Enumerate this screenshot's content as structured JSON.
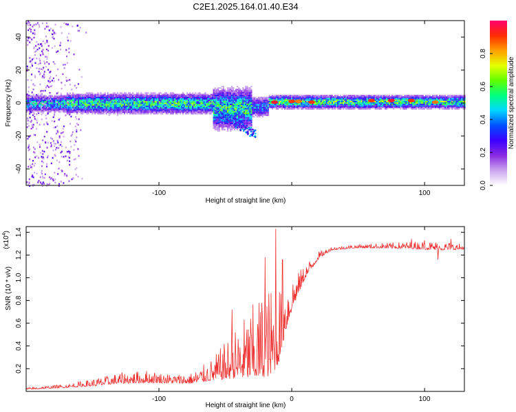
{
  "chart_data": [
    {
      "type": "heatmap",
      "title": "C2E1.2025.164.01.40.E34",
      "xlabel": "Height of straight line (km)",
      "ylabel": "Frequency (Hz)",
      "xlim": [
        -200,
        130
      ],
      "ylim": [
        -50,
        50
      ],
      "x_ticks": [
        -100,
        0,
        100
      ],
      "x_tick_labels": [
        "-100",
        "",
        "100"
      ],
      "y_ticks": [
        -40,
        -20,
        0,
        20,
        40
      ],
      "y_tick_labels": [
        "-40",
        "-20",
        "0",
        "20",
        "40"
      ],
      "colorbar": {
        "label": "Normalized spectral amplitude",
        "range": [
          0,
          1
        ],
        "ticks": [
          "0.0",
          "0.2",
          "0.4",
          "0.6",
          "0.8"
        ],
        "colormap": [
          "#ffffff",
          "#c9a4ee",
          "#8a2be2",
          "#3a00ff",
          "#0050ff",
          "#00d7ff",
          "#00ff80",
          "#60ff00",
          "#e6ff00",
          "#ffa000",
          "#ff2a00",
          "#ff0070"
        ]
      },
      "signal_band": [
        {
          "x_from": -200,
          "x_to": -170,
          "center": 0,
          "half_width": 5,
          "peak": 0.5,
          "note": "noisy broadband speckle up to ±50 Hz"
        },
        {
          "x_from": -170,
          "x_to": -60,
          "center": 0,
          "half_width": 6,
          "peak": 0.55
        },
        {
          "x_from": -60,
          "x_to": -30,
          "center": -3,
          "half_width": 12,
          "peak": 0.55
        },
        {
          "x_from": -30,
          "x_to": -18,
          "center": -2,
          "half_width": 6,
          "peak": 0.4
        },
        {
          "x_from": -18,
          "x_to": 130,
          "center": 1,
          "half_width": 4,
          "peak": 0.6
        }
      ],
      "hot_spots": [
        {
          "x": -13,
          "f": 0.5,
          "value": 0.95
        },
        {
          "x": 0,
          "f": 1,
          "value": 0.9
        },
        {
          "x": 5,
          "f": 1,
          "value": 0.85
        },
        {
          "x": 15,
          "f": 0.5,
          "value": 0.9
        },
        {
          "x": 60,
          "f": 1.5,
          "value": 0.9
        },
        {
          "x": 75,
          "f": 1.5,
          "value": 0.95
        },
        {
          "x": 90,
          "f": 1.5,
          "value": 0.9
        },
        {
          "x": 108,
          "f": 0.5,
          "value": 0.85
        }
      ]
    },
    {
      "type": "line",
      "title": "",
      "xlabel": "Height of straight line (km)",
      "ylabel": "SNR (10 * v/v)",
      "y_scale_label": "(x10",
      "y_scale_exponent": "4",
      "y_scale_close": ")",
      "xlim": [
        -200,
        130
      ],
      "ylim": [
        0,
        1.45
      ],
      "x_ticks": [
        -100,
        0,
        100
      ],
      "x_tick_labels": [
        "-100",
        "0",
        "100"
      ],
      "y_ticks": [
        0.2,
        0.4,
        0.6,
        0.8,
        1.0,
        1.2,
        1.4
      ],
      "y_tick_labels": [
        "0.2",
        "0.4",
        "0.6",
        "0.8",
        "1.0",
        "1.2",
        "1.4"
      ],
      "color": "#ee2a2a",
      "envelope": {
        "x": [
          -200,
          -170,
          -150,
          -130,
          -110,
          -90,
          -75,
          -60,
          -45,
          -30,
          -20,
          -15,
          -10,
          -5,
          0,
          5,
          10,
          20,
          30,
          50,
          70,
          90,
          110,
          130
        ],
        "base": [
          0.02,
          0.04,
          0.06,
          0.09,
          0.1,
          0.09,
          0.09,
          0.14,
          0.2,
          0.26,
          0.3,
          0.32,
          0.4,
          0.62,
          0.78,
          0.9,
          1.02,
          1.18,
          1.25,
          1.27,
          1.27,
          1.27,
          1.26,
          1.26
        ],
        "amplitude": [
          0.01,
          0.02,
          0.04,
          0.06,
          0.07,
          0.05,
          0.06,
          0.12,
          0.25,
          0.4,
          0.5,
          0.5,
          0.45,
          0.3,
          0.2,
          0.12,
          0.08,
          0.04,
          0.02,
          0.02,
          0.03,
          0.04,
          0.05,
          0.03
        ]
      },
      "notable_peaks": [
        {
          "x": -12,
          "y": 1.43
        },
        {
          "x": -20,
          "y": 1.18
        },
        {
          "x": -7,
          "y": 1.16
        },
        {
          "x": -45,
          "y": 0.72
        },
        {
          "x": 90,
          "y": 1.34
        },
        {
          "x": 100,
          "y": 1.33
        },
        {
          "x": 120,
          "y": 1.34
        },
        {
          "x": 110,
          "y": 1.16
        }
      ]
    }
  ]
}
